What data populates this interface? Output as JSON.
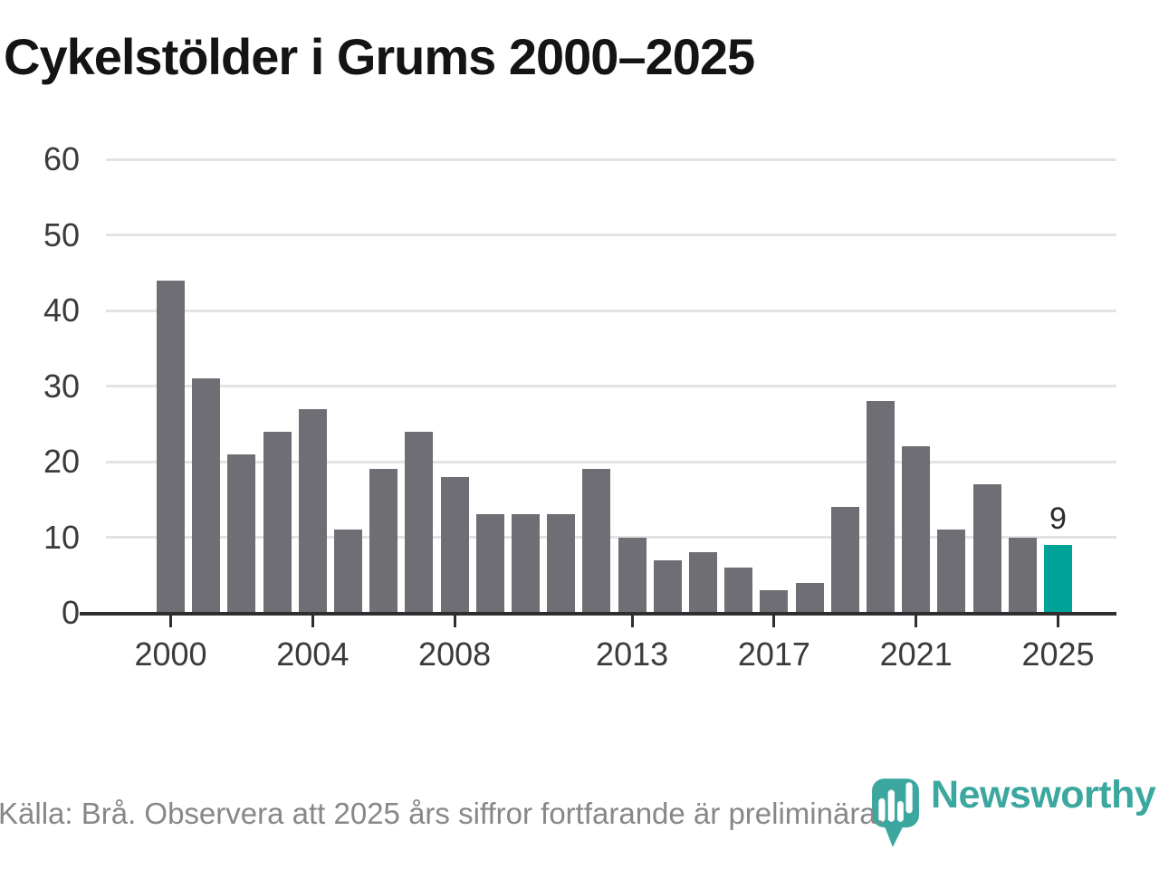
{
  "title": "Cykelstölder i Grums 2000–2025",
  "chart_data": {
    "type": "bar",
    "title": "Cykelstölder i Grums 2000–2025",
    "categories": [
      "2000",
      "2001",
      "2002",
      "2003",
      "2004",
      "2005",
      "2006",
      "2007",
      "2008",
      "2009",
      "2010",
      "2011",
      "2012",
      "2013",
      "2014",
      "2015",
      "2016",
      "2017",
      "2018",
      "2019",
      "2020",
      "2021",
      "2022",
      "2023",
      "2024",
      "2025"
    ],
    "values": [
      44,
      31,
      21,
      24,
      27,
      11,
      19,
      24,
      18,
      13,
      13,
      13,
      19,
      10,
      7,
      8,
      6,
      3,
      4,
      14,
      28,
      22,
      11,
      17,
      10,
      9
    ],
    "ylim": [
      0,
      60
    ],
    "y_ticks": [
      0,
      10,
      20,
      30,
      40,
      50,
      60
    ],
    "x_ticks": [
      {
        "index": 0,
        "label": "2000"
      },
      {
        "index": 4,
        "label": "2004"
      },
      {
        "index": 8,
        "label": "2008"
      },
      {
        "index": 13,
        "label": "2013"
      },
      {
        "index": 17,
        "label": "2017"
      },
      {
        "index": 21,
        "label": "2021"
      },
      {
        "index": 25,
        "label": "2025"
      }
    ],
    "grid": true,
    "legend_position": "none",
    "highlight_index": 25,
    "annotations": [
      {
        "index": 25,
        "label": "9"
      }
    ],
    "colors": {
      "bar": "#6e6e74",
      "highlight": "#00a398",
      "grid": "#e3e3e3",
      "axis": "#2e2e2e"
    }
  },
  "footer": {
    "source_text": "Källa: Brå. Observera att 2025 års siffror fortfarande är preliminära."
  },
  "branding": {
    "wordmark": "Newsworthy",
    "color": "#3ba79f",
    "icon": "bar-chart-speech-bubble-icon"
  }
}
